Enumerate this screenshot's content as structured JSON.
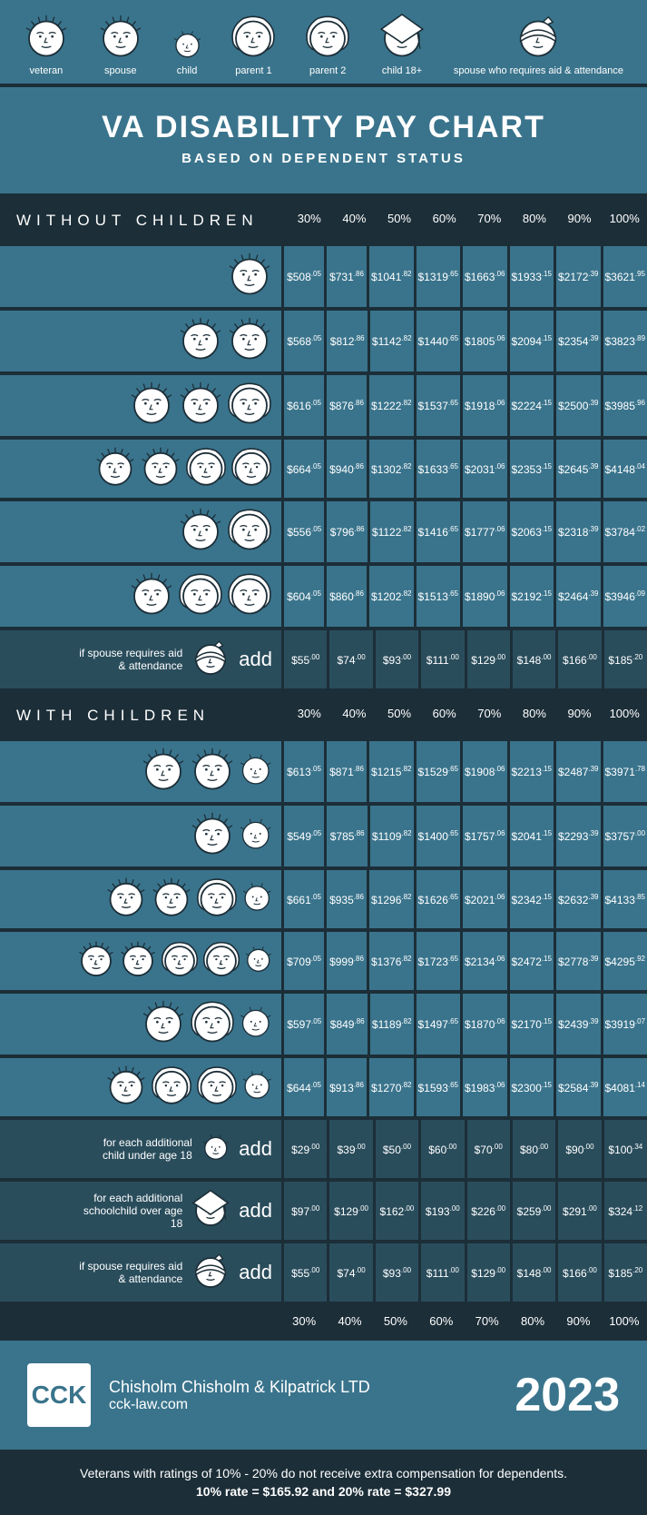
{
  "colors": {
    "bg_dark": "#1c2e38",
    "bg_teal": "#3a748c",
    "bg_dark_teal": "#2a4d5c",
    "face_fill": "#ffffff",
    "face_stroke": "#1c2e38",
    "text": "#ffffff"
  },
  "legend": [
    {
      "label": "veteran",
      "icon": "veteran"
    },
    {
      "label": "spouse",
      "icon": "spouse"
    },
    {
      "label": "child",
      "icon": "child"
    },
    {
      "label": "parent 1",
      "icon": "parent1"
    },
    {
      "label": "parent 2",
      "icon": "parent2"
    },
    {
      "label": "child 18+",
      "icon": "child18"
    },
    {
      "label": "spouse who requires aid & attendance",
      "icon": "spouse_aid"
    }
  ],
  "title": {
    "main": "VA DISABILITY PAY CHART",
    "sub": "BASED ON DEPENDENT STATUS"
  },
  "percent_cols": [
    "30%",
    "40%",
    "50%",
    "60%",
    "70%",
    "80%",
    "90%",
    "100%"
  ],
  "section1": {
    "header": "WITHOUT CHILDREN",
    "rows": [
      {
        "icons": [
          "veteran"
        ],
        "values": [
          [
            "$508",
            ".05"
          ],
          [
            "$731",
            ".86"
          ],
          [
            "$1041",
            ".82"
          ],
          [
            "$1319",
            ".65"
          ],
          [
            "$1663",
            ".06"
          ],
          [
            "$1933",
            ".15"
          ],
          [
            "$2172",
            ".39"
          ],
          [
            "$3621",
            ".95"
          ]
        ]
      },
      {
        "icons": [
          "veteran",
          "spouse"
        ],
        "values": [
          [
            "$568",
            ".05"
          ],
          [
            "$812",
            ".86"
          ],
          [
            "$1142",
            ".82"
          ],
          [
            "$1440",
            ".65"
          ],
          [
            "$1805",
            ".06"
          ],
          [
            "$2094",
            ".15"
          ],
          [
            "$2354",
            ".39"
          ],
          [
            "$3823",
            ".89"
          ]
        ]
      },
      {
        "icons": [
          "veteran",
          "spouse",
          "parent1"
        ],
        "values": [
          [
            "$616",
            ".05"
          ],
          [
            "$876",
            ".86"
          ],
          [
            "$1222",
            ".82"
          ],
          [
            "$1537",
            ".65"
          ],
          [
            "$1918",
            ".06"
          ],
          [
            "$2224",
            ".15"
          ],
          [
            "$2500",
            ".39"
          ],
          [
            "$3985",
            ".96"
          ]
        ]
      },
      {
        "icons": [
          "veteran",
          "spouse",
          "parent1",
          "parent2"
        ],
        "values": [
          [
            "$664",
            ".05"
          ],
          [
            "$940",
            ".86"
          ],
          [
            "$1302",
            ".82"
          ],
          [
            "$1633",
            ".65"
          ],
          [
            "$2031",
            ".06"
          ],
          [
            "$2353",
            ".15"
          ],
          [
            "$2645",
            ".39"
          ],
          [
            "$4148",
            ".04"
          ]
        ]
      },
      {
        "icons": [
          "veteran",
          "parent1"
        ],
        "values": [
          [
            "$556",
            ".05"
          ],
          [
            "$796",
            ".86"
          ],
          [
            "$1122",
            ".82"
          ],
          [
            "$1416",
            ".65"
          ],
          [
            "$1777",
            ".06"
          ],
          [
            "$2063",
            ".15"
          ],
          [
            "$2318",
            ".39"
          ],
          [
            "$3784",
            ".02"
          ]
        ]
      },
      {
        "icons": [
          "veteran",
          "parent1",
          "parent2"
        ],
        "values": [
          [
            "$604",
            ".05"
          ],
          [
            "$860",
            ".86"
          ],
          [
            "$1202",
            ".82"
          ],
          [
            "$1513",
            ".65"
          ],
          [
            "$1890",
            ".06"
          ],
          [
            "$2192",
            ".15"
          ],
          [
            "$2464",
            ".39"
          ],
          [
            "$3946",
            ".09"
          ]
        ]
      },
      {
        "dark": true,
        "text": "if spouse requires aid & attendance",
        "icons": [
          "spouse_aid"
        ],
        "add": true,
        "values": [
          [
            "$55",
            ".00"
          ],
          [
            "$74",
            ".00"
          ],
          [
            "$93",
            ".00"
          ],
          [
            "$111",
            ".00"
          ],
          [
            "$129",
            ".00"
          ],
          [
            "$148",
            ".00"
          ],
          [
            "$166",
            ".00"
          ],
          [
            "$185",
            ".20"
          ]
        ]
      }
    ]
  },
  "section2": {
    "header": "WITH CHILDREN",
    "rows": [
      {
        "icons": [
          "veteran",
          "spouse",
          "child"
        ],
        "values": [
          [
            "$613",
            ".05"
          ],
          [
            "$871",
            ".86"
          ],
          [
            "$1215",
            ".82"
          ],
          [
            "$1529",
            ".65"
          ],
          [
            "$1908",
            ".06"
          ],
          [
            "$2213",
            ".15"
          ],
          [
            "$2487",
            ".39"
          ],
          [
            "$3971",
            ".78"
          ]
        ]
      },
      {
        "icons": [
          "veteran",
          "child"
        ],
        "values": [
          [
            "$549",
            ".05"
          ],
          [
            "$785",
            ".86"
          ],
          [
            "$1109",
            ".82"
          ],
          [
            "$1400",
            ".65"
          ],
          [
            "$1757",
            ".06"
          ],
          [
            "$2041",
            ".15"
          ],
          [
            "$2293",
            ".39"
          ],
          [
            "$3757",
            ".00"
          ]
        ]
      },
      {
        "icons": [
          "veteran",
          "spouse",
          "parent1",
          "child"
        ],
        "values": [
          [
            "$661",
            ".05"
          ],
          [
            "$935",
            ".86"
          ],
          [
            "$1296",
            ".82"
          ],
          [
            "$1626",
            ".65"
          ],
          [
            "$2021",
            ".06"
          ],
          [
            "$2342",
            ".15"
          ],
          [
            "$2632",
            ".39"
          ],
          [
            "$4133",
            ".85"
          ]
        ]
      },
      {
        "icons": [
          "veteran",
          "spouse",
          "parent1",
          "parent2",
          "child"
        ],
        "values": [
          [
            "$709",
            ".05"
          ],
          [
            "$999",
            ".86"
          ],
          [
            "$1376",
            ".82"
          ],
          [
            "$1723",
            ".65"
          ],
          [
            "$2134",
            ".06"
          ],
          [
            "$2472",
            ".15"
          ],
          [
            "$2778",
            ".39"
          ],
          [
            "$4295",
            ".92"
          ]
        ]
      },
      {
        "icons": [
          "veteran",
          "parent1",
          "child"
        ],
        "values": [
          [
            "$597",
            ".05"
          ],
          [
            "$849",
            ".86"
          ],
          [
            "$1189",
            ".82"
          ],
          [
            "$1497",
            ".65"
          ],
          [
            "$1870",
            ".06"
          ],
          [
            "$2170",
            ".15"
          ],
          [
            "$2439",
            ".39"
          ],
          [
            "$3919",
            ".07"
          ]
        ]
      },
      {
        "icons": [
          "veteran",
          "parent1",
          "parent2",
          "child"
        ],
        "values": [
          [
            "$644",
            ".05"
          ],
          [
            "$913",
            ".86"
          ],
          [
            "$1270",
            ".82"
          ],
          [
            "$1593",
            ".65"
          ],
          [
            "$1983",
            ".06"
          ],
          [
            "$2300",
            ".15"
          ],
          [
            "$2584",
            ".39"
          ],
          [
            "$4081",
            ".14"
          ]
        ]
      },
      {
        "dark": true,
        "text": "for each additional child under age 18",
        "icons": [
          "child"
        ],
        "add": true,
        "values": [
          [
            "$29",
            ".00"
          ],
          [
            "$39",
            ".00"
          ],
          [
            "$50",
            ".00"
          ],
          [
            "$60",
            ".00"
          ],
          [
            "$70",
            ".00"
          ],
          [
            "$80",
            ".00"
          ],
          [
            "$90",
            ".00"
          ],
          [
            "$100",
            ".34"
          ]
        ]
      },
      {
        "dark": true,
        "text": "for each additional schoolchild over age 18",
        "icons": [
          "child18"
        ],
        "add": true,
        "values": [
          [
            "$97",
            ".00"
          ],
          [
            "$129",
            ".00"
          ],
          [
            "$162",
            ".00"
          ],
          [
            "$193",
            ".00"
          ],
          [
            "$226",
            ".00"
          ],
          [
            "$259",
            ".00"
          ],
          [
            "$291",
            ".00"
          ],
          [
            "$324",
            ".12"
          ]
        ]
      },
      {
        "dark": true,
        "text": "if spouse requires aid & attendance",
        "icons": [
          "spouse_aid"
        ],
        "add": true,
        "values": [
          [
            "$55",
            ".00"
          ],
          [
            "$74",
            ".00"
          ],
          [
            "$93",
            ".00"
          ],
          [
            "$111",
            ".00"
          ],
          [
            "$129",
            ".00"
          ],
          [
            "$148",
            ".00"
          ],
          [
            "$166",
            ".00"
          ],
          [
            "$185",
            ".20"
          ]
        ]
      }
    ]
  },
  "footer": {
    "brand_name": "Chisholm Chisholm & Kilpatrick LTD",
    "brand_url": "cck-law.com",
    "logo_text": "CCK",
    "year": "2023",
    "note1": "Veterans with ratings of 10% - 20% do not receive extra compensation for dependents.",
    "note2": "10% rate = $165.92  and  20% rate = $327.99"
  },
  "add_label": "add"
}
